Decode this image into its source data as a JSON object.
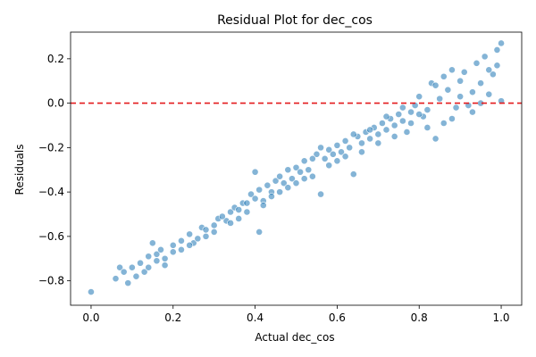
{
  "chart_data": {
    "type": "scatter",
    "title": "Residual Plot for dec_cos",
    "xlabel": "Actual dec_cos",
    "ylabel": "Residuals",
    "xlim": [
      -0.05,
      1.05
    ],
    "ylim": [
      -0.91,
      0.32
    ],
    "xticks": [
      0.0,
      0.2,
      0.4,
      0.6,
      0.8,
      1.0
    ],
    "xtick_labels": [
      "0.0",
      "0.2",
      "0.4",
      "0.6",
      "0.8",
      "1.0"
    ],
    "yticks": [
      -0.8,
      -0.6,
      -0.4,
      -0.2,
      0.0,
      0.2
    ],
    "ytick_labels": [
      "−0.8",
      "−0.6",
      "−0.4",
      "−0.2",
      "0.0",
      "0.2"
    ],
    "reference_line": {
      "y": 0.0,
      "color": "#e41a1c",
      "style": "dashed"
    },
    "grid": false,
    "point_color": "#1f77b4",
    "series": [
      {
        "points": [
          [
            0.0,
            -0.85
          ],
          [
            0.06,
            -0.79
          ],
          [
            0.07,
            -0.74
          ],
          [
            0.08,
            -0.76
          ],
          [
            0.09,
            -0.81
          ],
          [
            0.1,
            -0.74
          ],
          [
            0.11,
            -0.78
          ],
          [
            0.12,
            -0.72
          ],
          [
            0.13,
            -0.76
          ],
          [
            0.14,
            -0.69
          ],
          [
            0.15,
            -0.63
          ],
          [
            0.16,
            -0.68
          ],
          [
            0.17,
            -0.66
          ],
          [
            0.18,
            -0.7
          ],
          [
            0.2,
            -0.64
          ],
          [
            0.22,
            -0.62
          ],
          [
            0.24,
            -0.59
          ],
          [
            0.25,
            -0.63
          ],
          [
            0.27,
            -0.56
          ],
          [
            0.28,
            -0.6
          ],
          [
            0.3,
            -0.55
          ],
          [
            0.31,
            -0.52
          ],
          [
            0.33,
            -0.53
          ],
          [
            0.34,
            -0.49
          ],
          [
            0.35,
            -0.47
          ],
          [
            0.36,
            -0.52
          ],
          [
            0.37,
            -0.45
          ],
          [
            0.38,
            -0.49
          ],
          [
            0.39,
            -0.41
          ],
          [
            0.4,
            -0.31
          ],
          [
            0.41,
            -0.39
          ],
          [
            0.41,
            -0.58
          ],
          [
            0.42,
            -0.44
          ],
          [
            0.43,
            -0.37
          ],
          [
            0.44,
            -0.4
          ],
          [
            0.45,
            -0.35
          ],
          [
            0.46,
            -0.33
          ],
          [
            0.47,
            -0.36
          ],
          [
            0.48,
            -0.3
          ],
          [
            0.49,
            -0.34
          ],
          [
            0.5,
            -0.29
          ],
          [
            0.51,
            -0.31
          ],
          [
            0.52,
            -0.26
          ],
          [
            0.53,
            -0.3
          ],
          [
            0.54,
            -0.33
          ],
          [
            0.55,
            -0.23
          ],
          [
            0.56,
            -0.41
          ],
          [
            0.57,
            -0.25
          ],
          [
            0.58,
            -0.21
          ],
          [
            0.59,
            -0.23
          ],
          [
            0.6,
            -0.19
          ],
          [
            0.61,
            -0.22
          ],
          [
            0.62,
            -0.17
          ],
          [
            0.63,
            -0.2
          ],
          [
            0.64,
            -0.32
          ],
          [
            0.65,
            -0.15
          ],
          [
            0.66,
            -0.18
          ],
          [
            0.67,
            -0.13
          ],
          [
            0.68,
            -0.16
          ],
          [
            0.69,
            -0.11
          ],
          [
            0.7,
            -0.14
          ],
          [
            0.71,
            -0.09
          ],
          [
            0.72,
            -0.12
          ],
          [
            0.73,
            -0.07
          ],
          [
            0.74,
            -0.1
          ],
          [
            0.75,
            -0.05
          ],
          [
            0.76,
            -0.08
          ],
          [
            0.77,
            -0.13
          ],
          [
            0.78,
            -0.04
          ],
          [
            0.79,
            -0.01
          ],
          [
            0.8,
            0.03
          ],
          [
            0.81,
            -0.06
          ],
          [
            0.82,
            -0.03
          ],
          [
            0.83,
            0.09
          ],
          [
            0.84,
            -0.16
          ],
          [
            0.85,
            0.02
          ],
          [
            0.86,
            -0.09
          ],
          [
            0.87,
            0.06
          ],
          [
            0.88,
            0.15
          ],
          [
            0.89,
            -0.02
          ],
          [
            0.9,
            0.1
          ],
          [
            0.91,
            0.14
          ],
          [
            0.92,
            -0.01
          ],
          [
            0.93,
            0.05
          ],
          [
            0.94,
            0.18
          ],
          [
            0.95,
            0.09
          ],
          [
            0.96,
            0.21
          ],
          [
            0.97,
            0.04
          ],
          [
            0.98,
            0.13
          ],
          [
            0.99,
            0.24
          ],
          [
            1.0,
            0.27
          ],
          [
            1.0,
            0.01
          ],
          [
            0.99,
            0.17
          ],
          [
            0.97,
            0.15
          ],
          [
            0.95,
            0.0
          ],
          [
            0.93,
            -0.04
          ],
          [
            0.9,
            0.03
          ],
          [
            0.88,
            -0.07
          ],
          [
            0.86,
            0.12
          ],
          [
            0.84,
            0.08
          ],
          [
            0.82,
            -0.11
          ],
          [
            0.8,
            -0.05
          ],
          [
            0.78,
            -0.09
          ],
          [
            0.76,
            -0.02
          ],
          [
            0.74,
            -0.15
          ],
          [
            0.72,
            -0.06
          ],
          [
            0.7,
            -0.18
          ],
          [
            0.68,
            -0.12
          ],
          [
            0.66,
            -0.22
          ],
          [
            0.64,
            -0.14
          ],
          [
            0.62,
            -0.24
          ],
          [
            0.6,
            -0.26
          ],
          [
            0.58,
            -0.28
          ],
          [
            0.56,
            -0.2
          ],
          [
            0.54,
            -0.25
          ],
          [
            0.52,
            -0.34
          ],
          [
            0.5,
            -0.36
          ],
          [
            0.48,
            -0.38
          ],
          [
            0.46,
            -0.4
          ],
          [
            0.44,
            -0.42
          ],
          [
            0.42,
            -0.46
          ],
          [
            0.4,
            -0.43
          ],
          [
            0.38,
            -0.45
          ],
          [
            0.36,
            -0.48
          ],
          [
            0.34,
            -0.54
          ],
          [
            0.32,
            -0.51
          ],
          [
            0.3,
            -0.58
          ],
          [
            0.28,
            -0.57
          ],
          [
            0.26,
            -0.61
          ],
          [
            0.24,
            -0.64
          ],
          [
            0.22,
            -0.66
          ],
          [
            0.2,
            -0.67
          ],
          [
            0.18,
            -0.73
          ],
          [
            0.16,
            -0.71
          ],
          [
            0.14,
            -0.74
          ]
        ]
      }
    ]
  }
}
